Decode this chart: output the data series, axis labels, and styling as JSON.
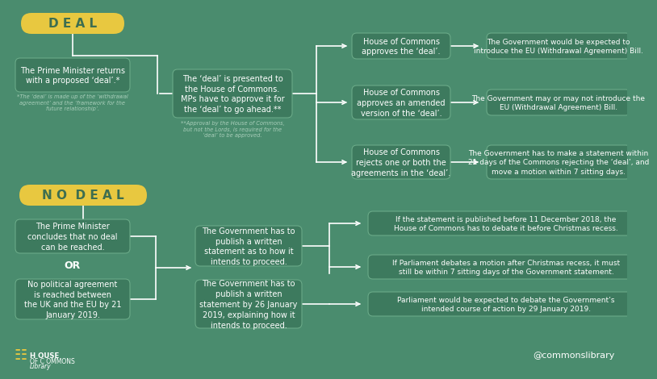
{
  "bg_color": "#4a8c6e",
  "box_color": "#3d7a5e",
  "box_edge_color": "#6aaa88",
  "yellow_color": "#e8c840",
  "yellow_text": "#3d6e50",
  "white_text": "#ffffff",
  "light_text": "#aacfbb",
  "deal_label": "D E A L",
  "no_deal_label": "N O  D E A L",
  "pm_deal": "The Prime Minister returns\nwith a proposed ‘deal’.*",
  "pm_deal_note": "*The ‘deal’ is made up of the ‘withdrawal\nagreement’ and the ‘framework for the\nfuture relationship’.",
  "presented": "The ‘deal’ is presented to\nthe House of Commons.\nMPs have to approve it for\nthe ‘deal’ to go ahead.**",
  "presented_note": "**Approval by the House of Commons,\nbut not the Lords, is required for the\n‘deal’ to be approved.",
  "hoc_approves": "House of Commons\napproves the ‘deal’.",
  "hoc_amended": "House of Commons\napproves an amended\nversion of the ‘deal’.",
  "hoc_rejects": "House of Commons\nrejects one or both the\nagreements in the ‘deal’.",
  "gov_intro": "The Government would be expected to\nintroduce the EU (Withdrawal Agreement) Bill.",
  "gov_may": "The Government may or may not introduce the\nEU (Withdrawal Agreement) Bill.",
  "gov_statement": "The Government has to make a statement within\n21 days of the Commons rejecting the ‘deal’, and\nmove a motion within 7 sitting days.",
  "pm_no_deal": "The Prime Minister\nconcludes that no deal\ncan be reached.",
  "no_agreement": "No political agreement\nis reached between\nthe UK and the EU by 21\nJanuary 2019.",
  "gov_written1": "The Government has to\npublish a written\nstatement as to how it\nintends to proceed.",
  "gov_written2": "The Government has to\npublish a written\nstatement by 26 January\n2019, explaining how it\nintends to proceed.",
  "if_before": "If the statement is published before 11 December 2018, the\nHouse of Commons has to debate it before Christmas recess.",
  "if_after": "If Parliament debates a motion after Christmas recess, it must\nstill be within 7 sitting days of the Government statement.",
  "parliament_debate": "Parliament would be expected to debate the Government’s\nintended course of action by 29 January 2019.",
  "footer_hoc": "H OUSE  OF  C OMMONS",
  "footer_lib": "Library",
  "footer_social": "@commonslibrary"
}
